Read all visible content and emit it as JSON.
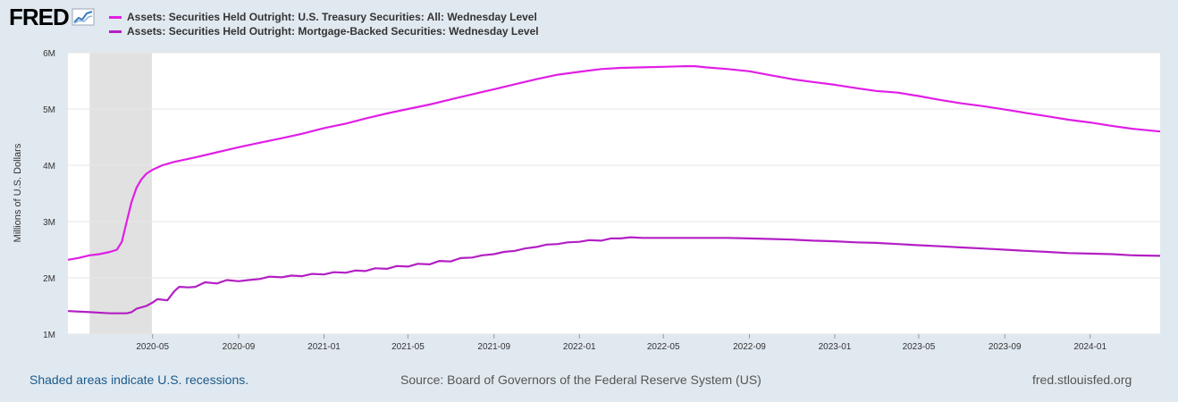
{
  "header": {
    "logo_text": "FRED",
    "logo_icon": "line-chart-icon"
  },
  "legend": [
    {
      "label": "Assets: Securities Held Outright: U.S. Treasury Securities: All: Wednesday Level",
      "color": "#e01ee6"
    },
    {
      "label": "Assets: Securities Held Outright: Mortgage-Backed Securities: Wednesday Level",
      "color": "#b31fc4"
    }
  ],
  "footer": {
    "recession_note": "Shaded areas indicate U.S. recessions.",
    "source": "Source: Board of Governors of the Federal Reserve System (US)",
    "site": "fred.stlouisfed.org"
  },
  "chart_data": {
    "type": "line",
    "ylabel": "Millions of U.S. Dollars",
    "xlabel": "",
    "ylim": [
      1000000,
      6000000
    ],
    "xlim": [
      "2020-01-01",
      "2024-04-10"
    ],
    "y_ticks": [
      {
        "value": 1000000,
        "label": "1M"
      },
      {
        "value": 2000000,
        "label": "2M"
      },
      {
        "value": 3000000,
        "label": "3M"
      },
      {
        "value": 4000000,
        "label": "4M"
      },
      {
        "value": 5000000,
        "label": "5M"
      },
      {
        "value": 6000000,
        "label": "6M"
      }
    ],
    "x_ticks": [
      "2020-05",
      "2020-09",
      "2021-01",
      "2021-05",
      "2021-09",
      "2022-01",
      "2022-05",
      "2022-09",
      "2023-01",
      "2023-05",
      "2023-09",
      "2024-01"
    ],
    "recessions": [
      {
        "start": "2020-02-01",
        "end": "2020-04-30"
      }
    ],
    "grid": true,
    "series": [
      {
        "name": "Assets: Securities Held Outright: U.S. Treasury Securities: All: Wednesday Level",
        "color": "#e01ee6",
        "points": [
          [
            "2020-01-01",
            2320000
          ],
          [
            "2020-01-15",
            2350000
          ],
          [
            "2020-02-01",
            2400000
          ],
          [
            "2020-02-15",
            2420000
          ],
          [
            "2020-03-01",
            2460000
          ],
          [
            "2020-03-11",
            2500000
          ],
          [
            "2020-03-18",
            2640000
          ],
          [
            "2020-03-25",
            3000000
          ],
          [
            "2020-04-01",
            3350000
          ],
          [
            "2020-04-08",
            3600000
          ],
          [
            "2020-04-15",
            3750000
          ],
          [
            "2020-04-22",
            3850000
          ],
          [
            "2020-05-01",
            3920000
          ],
          [
            "2020-05-15",
            4000000
          ],
          [
            "2020-06-01",
            4060000
          ],
          [
            "2020-07-01",
            4140000
          ],
          [
            "2020-08-01",
            4230000
          ],
          [
            "2020-09-01",
            4320000
          ],
          [
            "2020-10-01",
            4400000
          ],
          [
            "2020-11-01",
            4480000
          ],
          [
            "2020-12-01",
            4560000
          ],
          [
            "2021-01-01",
            4660000
          ],
          [
            "2021-02-01",
            4740000
          ],
          [
            "2021-03-01",
            4830000
          ],
          [
            "2021-04-01",
            4920000
          ],
          [
            "2021-05-01",
            5000000
          ],
          [
            "2021-06-01",
            5080000
          ],
          [
            "2021-07-01",
            5170000
          ],
          [
            "2021-08-01",
            5260000
          ],
          [
            "2021-09-01",
            5350000
          ],
          [
            "2021-10-01",
            5440000
          ],
          [
            "2021-11-01",
            5530000
          ],
          [
            "2021-12-01",
            5610000
          ],
          [
            "2022-01-01",
            5660000
          ],
          [
            "2022-02-01",
            5710000
          ],
          [
            "2022-03-01",
            5730000
          ],
          [
            "2022-04-01",
            5740000
          ],
          [
            "2022-05-01",
            5750000
          ],
          [
            "2022-06-01",
            5760000
          ],
          [
            "2022-06-15",
            5760000
          ],
          [
            "2022-07-01",
            5740000
          ],
          [
            "2022-08-01",
            5710000
          ],
          [
            "2022-09-01",
            5670000
          ],
          [
            "2022-10-01",
            5600000
          ],
          [
            "2022-11-01",
            5530000
          ],
          [
            "2022-12-01",
            5480000
          ],
          [
            "2023-01-01",
            5430000
          ],
          [
            "2023-02-01",
            5370000
          ],
          [
            "2023-03-01",
            5320000
          ],
          [
            "2023-04-01",
            5290000
          ],
          [
            "2023-05-01",
            5230000
          ],
          [
            "2023-06-01",
            5160000
          ],
          [
            "2023-07-01",
            5100000
          ],
          [
            "2023-08-01",
            5050000
          ],
          [
            "2023-09-01",
            4990000
          ],
          [
            "2023-10-01",
            4930000
          ],
          [
            "2023-11-01",
            4870000
          ],
          [
            "2023-12-01",
            4810000
          ],
          [
            "2024-01-01",
            4760000
          ],
          [
            "2024-02-01",
            4700000
          ],
          [
            "2024-03-01",
            4650000
          ],
          [
            "2024-04-10",
            4600000
          ]
        ]
      },
      {
        "name": "Assets: Securities Held Outright: Mortgage-Backed Securities: Wednesday Level",
        "color": "#b31fc4",
        "points": [
          [
            "2020-01-01",
            1410000
          ],
          [
            "2020-02-01",
            1390000
          ],
          [
            "2020-03-01",
            1370000
          ],
          [
            "2020-03-25",
            1370000
          ],
          [
            "2020-04-01",
            1390000
          ],
          [
            "2020-04-08",
            1450000
          ],
          [
            "2020-04-22",
            1500000
          ],
          [
            "2020-05-01",
            1560000
          ],
          [
            "2020-05-08",
            1620000
          ],
          [
            "2020-05-22",
            1600000
          ],
          [
            "2020-06-01",
            1760000
          ],
          [
            "2020-06-08",
            1840000
          ],
          [
            "2020-06-22",
            1830000
          ],
          [
            "2020-07-01",
            1840000
          ],
          [
            "2020-07-15",
            1920000
          ],
          [
            "2020-08-01",
            1900000
          ],
          [
            "2020-08-15",
            1960000
          ],
          [
            "2020-09-01",
            1940000
          ],
          [
            "2020-09-15",
            1960000
          ],
          [
            "2020-10-01",
            1980000
          ],
          [
            "2020-10-15",
            2020000
          ],
          [
            "2020-11-01",
            2010000
          ],
          [
            "2020-11-15",
            2040000
          ],
          [
            "2020-12-01",
            2030000
          ],
          [
            "2020-12-15",
            2070000
          ],
          [
            "2021-01-01",
            2060000
          ],
          [
            "2021-01-15",
            2100000
          ],
          [
            "2021-02-01",
            2090000
          ],
          [
            "2021-02-15",
            2130000
          ],
          [
            "2021-03-01",
            2120000
          ],
          [
            "2021-03-15",
            2170000
          ],
          [
            "2021-04-01",
            2160000
          ],
          [
            "2021-04-15",
            2210000
          ],
          [
            "2021-05-01",
            2200000
          ],
          [
            "2021-05-15",
            2250000
          ],
          [
            "2021-06-01",
            2240000
          ],
          [
            "2021-06-15",
            2300000
          ],
          [
            "2021-07-01",
            2290000
          ],
          [
            "2021-07-15",
            2350000
          ],
          [
            "2021-08-01",
            2360000
          ],
          [
            "2021-08-15",
            2400000
          ],
          [
            "2021-09-01",
            2420000
          ],
          [
            "2021-09-15",
            2460000
          ],
          [
            "2021-10-01",
            2480000
          ],
          [
            "2021-10-15",
            2520000
          ],
          [
            "2021-11-01",
            2550000
          ],
          [
            "2021-11-15",
            2590000
          ],
          [
            "2021-12-01",
            2600000
          ],
          [
            "2021-12-15",
            2630000
          ],
          [
            "2022-01-01",
            2640000
          ],
          [
            "2022-01-15",
            2670000
          ],
          [
            "2022-02-01",
            2660000
          ],
          [
            "2022-02-15",
            2700000
          ],
          [
            "2022-03-01",
            2700000
          ],
          [
            "2022-03-15",
            2720000
          ],
          [
            "2022-04-01",
            2710000
          ],
          [
            "2022-05-01",
            2710000
          ],
          [
            "2022-06-01",
            2710000
          ],
          [
            "2022-07-01",
            2710000
          ],
          [
            "2022-08-01",
            2710000
          ],
          [
            "2022-09-01",
            2700000
          ],
          [
            "2022-10-01",
            2690000
          ],
          [
            "2022-11-01",
            2680000
          ],
          [
            "2022-12-01",
            2660000
          ],
          [
            "2023-01-01",
            2650000
          ],
          [
            "2023-02-01",
            2630000
          ],
          [
            "2023-03-01",
            2620000
          ],
          [
            "2023-04-01",
            2600000
          ],
          [
            "2023-05-01",
            2580000
          ],
          [
            "2023-06-01",
            2560000
          ],
          [
            "2023-07-01",
            2540000
          ],
          [
            "2023-08-01",
            2520000
          ],
          [
            "2023-09-01",
            2500000
          ],
          [
            "2023-10-01",
            2480000
          ],
          [
            "2023-11-01",
            2460000
          ],
          [
            "2023-12-01",
            2440000
          ],
          [
            "2024-01-01",
            2430000
          ],
          [
            "2024-02-01",
            2420000
          ],
          [
            "2024-03-01",
            2400000
          ],
          [
            "2024-04-10",
            2390000
          ]
        ]
      }
    ]
  }
}
